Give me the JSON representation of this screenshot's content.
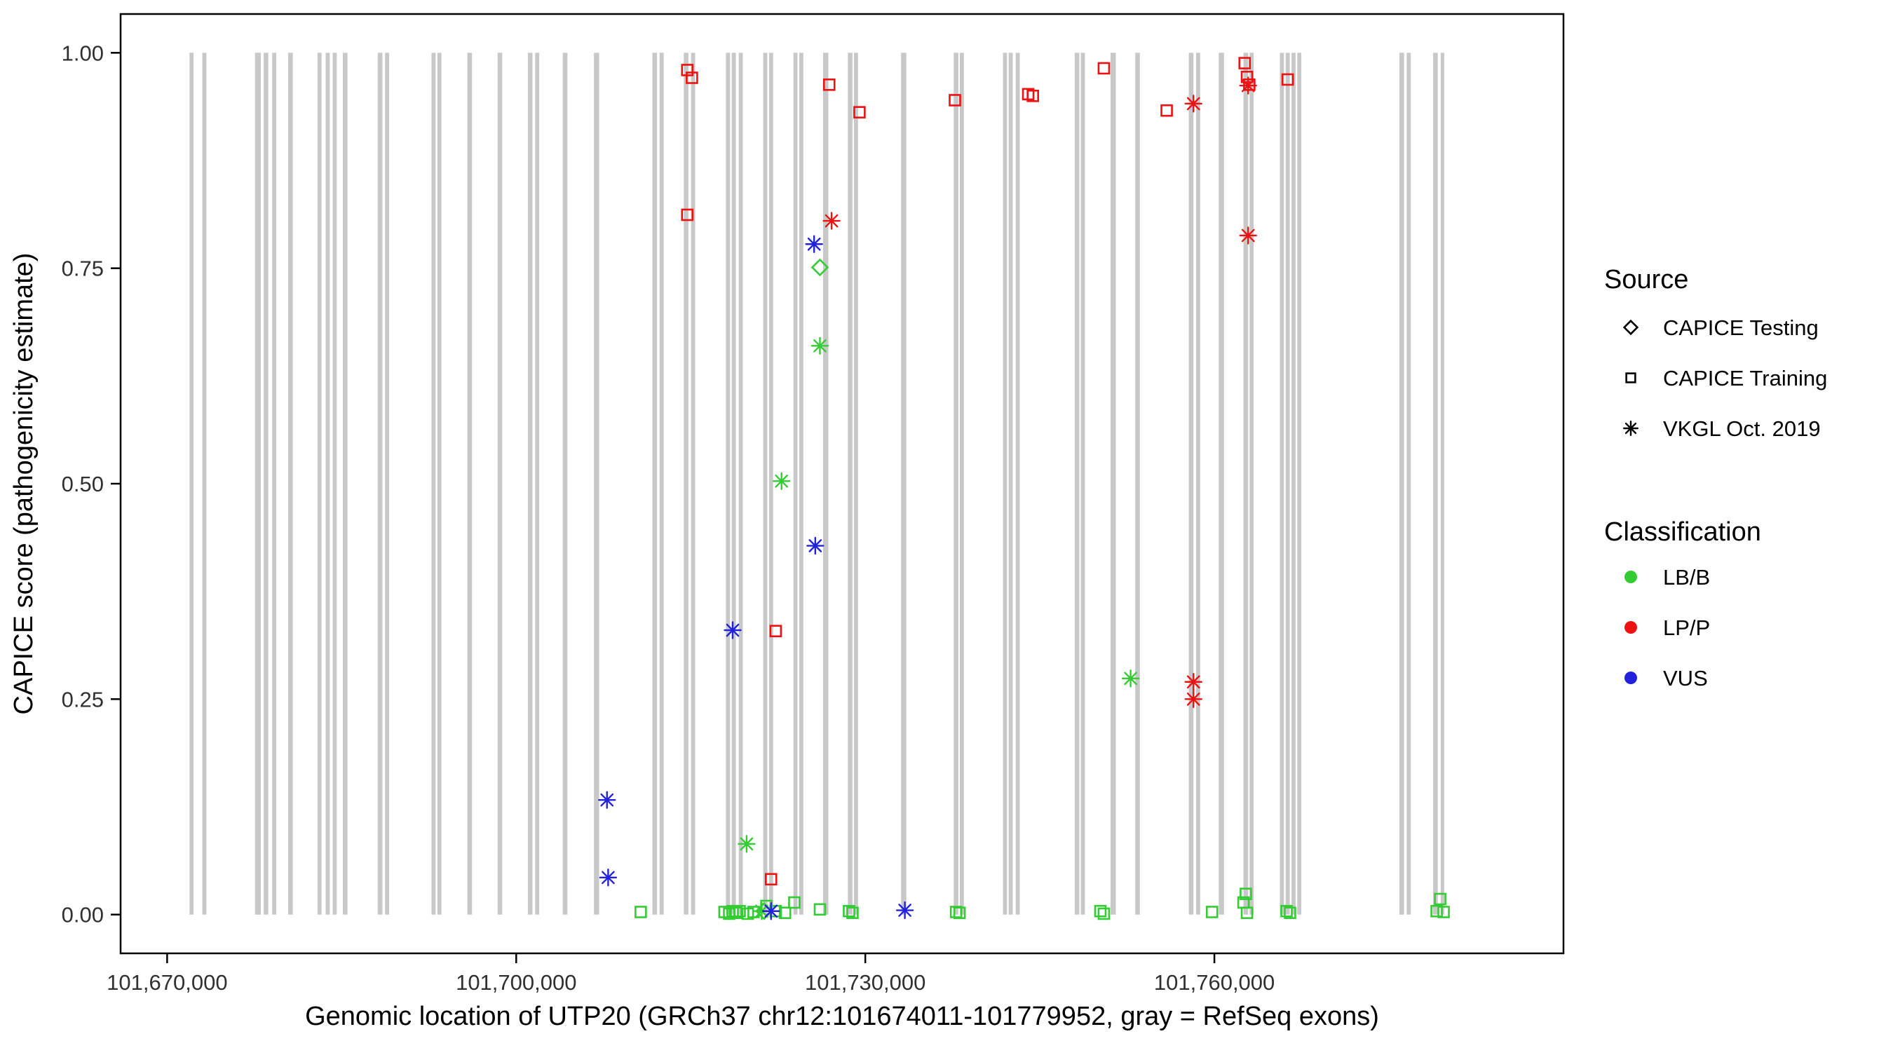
{
  "chart_data": {
    "type": "scatter",
    "title": "",
    "xlabel": "Genomic location of UTP20 (GRCh37 chr12:101674011-101779952, gray = RefSeq exons)",
    "ylabel": "CAPICE score (pathogenicity estimate)",
    "xlim": [
      101666000,
      101790000
    ],
    "ylim": [
      -0.045,
      1.045
    ],
    "grid": false,
    "legend_position": "right",
    "x_ticks": [
      {
        "value": 101670000,
        "label": "101,670,000"
      },
      {
        "value": 101700000,
        "label": "101,700,000"
      },
      {
        "value": 101730000,
        "label": "101,730,000"
      },
      {
        "value": 101760000,
        "label": "101,760,000"
      }
    ],
    "y_ticks": [
      {
        "value": 0.0,
        "label": "0.00"
      },
      {
        "value": 0.25,
        "label": "0.25"
      },
      {
        "value": 0.5,
        "label": "0.50"
      },
      {
        "value": 0.75,
        "label": "0.75"
      },
      {
        "value": 1.0,
        "label": "1.00"
      }
    ],
    "colors": {
      "exon": "#C8C8C8",
      "lbb": "#33CC33",
      "lpp": "#EE1111",
      "vus": "#2222DD"
    },
    "exons": [
      [
        101672100,
        350
      ],
      [
        101673200,
        350
      ],
      [
        101677800,
        500
      ],
      [
        101678500,
        400
      ],
      [
        101679200,
        350
      ],
      [
        101680600,
        400
      ],
      [
        101683100,
        350
      ],
      [
        101683800,
        350
      ],
      [
        101684400,
        350
      ],
      [
        101685300,
        400
      ],
      [
        101688300,
        400
      ],
      [
        101688900,
        350
      ],
      [
        101692900,
        350
      ],
      [
        101693400,
        350
      ],
      [
        101696000,
        400
      ],
      [
        101698600,
        400
      ],
      [
        101701200,
        400
      ],
      [
        101701800,
        350
      ],
      [
        101704200,
        400
      ],
      [
        101706900,
        450
      ],
      [
        101711900,
        400
      ],
      [
        101712500,
        350
      ],
      [
        101714600,
        400
      ],
      [
        101715200,
        350
      ],
      [
        101718200,
        350
      ],
      [
        101718700,
        350
      ],
      [
        101719300,
        350
      ],
      [
        101721400,
        350
      ],
      [
        101721900,
        350
      ],
      [
        101724000,
        350
      ],
      [
        101724500,
        350
      ],
      [
        101726600,
        450
      ],
      [
        101728700,
        400
      ],
      [
        101729200,
        350
      ],
      [
        101733300,
        450
      ],
      [
        101737800,
        400
      ],
      [
        101738300,
        350
      ],
      [
        101742000,
        350
      ],
      [
        101742500,
        350
      ],
      [
        101743100,
        350
      ],
      [
        101748200,
        400
      ],
      [
        101748700,
        350
      ],
      [
        101751300,
        450
      ],
      [
        101753400,
        400
      ],
      [
        101758000,
        400
      ],
      [
        101758600,
        350
      ],
      [
        101760600,
        450
      ],
      [
        101762700,
        400
      ],
      [
        101763200,
        350
      ],
      [
        101765800,
        350
      ],
      [
        101766300,
        350
      ],
      [
        101766800,
        350
      ],
      [
        101767300,
        350
      ],
      [
        101776100,
        400
      ],
      [
        101776700,
        350
      ],
      [
        101779000,
        400
      ],
      [
        101779600,
        300
      ]
    ],
    "series": [
      {
        "name": "CAPICE Training / LP-P",
        "source": "CAPICE Training",
        "classification": "LP/P",
        "shape": "square",
        "color": "#EE1111",
        "points": [
          [
            101714700,
            0.98
          ],
          [
            101715100,
            0.971
          ],
          [
            101714700,
            0.812
          ],
          [
            101722300,
            0.329
          ],
          [
            101721900,
            0.041
          ],
          [
            101726900,
            0.963
          ],
          [
            101729500,
            0.931
          ],
          [
            101737700,
            0.945
          ],
          [
            101744000,
            0.952
          ],
          [
            101744400,
            0.95
          ],
          [
            101750500,
            0.982
          ],
          [
            101755900,
            0.933
          ],
          [
            101762600,
            0.988
          ],
          [
            101762800,
            0.972
          ],
          [
            101763000,
            0.963
          ],
          [
            101766300,
            0.969
          ]
        ]
      },
      {
        "name": "CAPICE Training / LB-B",
        "source": "CAPICE Training",
        "classification": "LB/B",
        "shape": "square",
        "color": "#33CC33",
        "points": [
          [
            101710700,
            0.003
          ],
          [
            101717900,
            0.003
          ],
          [
            101718300,
            0.001
          ],
          [
            101718600,
            0.004
          ],
          [
            101718900,
            0.002
          ],
          [
            101719200,
            0.004
          ],
          [
            101719900,
            0.001
          ],
          [
            101720400,
            0.003
          ],
          [
            101721500,
            0.01
          ],
          [
            101722300,
            0.004
          ],
          [
            101723100,
            0.002
          ],
          [
            101723900,
            0.014
          ],
          [
            101726100,
            0.006
          ],
          [
            101728600,
            0.004
          ],
          [
            101728900,
            0.002
          ],
          [
            101737800,
            0.003
          ],
          [
            101738100,
            0.002
          ],
          [
            101750200,
            0.004
          ],
          [
            101750500,
            0.001
          ],
          [
            101759800,
            0.003
          ],
          [
            101762500,
            0.014
          ],
          [
            101762700,
            0.024
          ],
          [
            101762800,
            0.002
          ],
          [
            101766200,
            0.004
          ],
          [
            101766500,
            0.002
          ],
          [
            101779100,
            0.004
          ],
          [
            101779400,
            0.018
          ],
          [
            101779700,
            0.003
          ]
        ]
      },
      {
        "name": "CAPICE Testing / LB-B",
        "source": "CAPICE Testing",
        "classification": "LB/B",
        "shape": "diamond",
        "color": "#33CC33",
        "points": [
          [
            101726100,
            0.751
          ],
          [
            101721300,
            0.004
          ]
        ]
      },
      {
        "name": "VKGL Oct. 2019 / LP-P",
        "source": "VKGL Oct. 2019",
        "classification": "LP/P",
        "shape": "asterisk",
        "color": "#EE1111",
        "points": [
          [
            101727100,
            0.805
          ],
          [
            101758200,
            0.941
          ],
          [
            101762900,
            0.962
          ],
          [
            101762900,
            0.788
          ],
          [
            101758200,
            0.27
          ],
          [
            101758200,
            0.25
          ]
        ]
      },
      {
        "name": "VKGL Oct. 2019 / LB-B",
        "source": "VKGL Oct. 2019",
        "classification": "LB/B",
        "shape": "asterisk",
        "color": "#33CC33",
        "points": [
          [
            101726100,
            0.66
          ],
          [
            101722800,
            0.503
          ],
          [
            101719800,
            0.082
          ],
          [
            101752800,
            0.274
          ],
          [
            101721100,
            0.004
          ]
        ]
      },
      {
        "name": "VKGL Oct. 2019 / VUS",
        "source": "VKGL Oct. 2019",
        "classification": "VUS",
        "shape": "asterisk",
        "color": "#2222DD",
        "points": [
          [
            101725600,
            0.778
          ],
          [
            101725700,
            0.428
          ],
          [
            101718600,
            0.33
          ],
          [
            101707800,
            0.133
          ],
          [
            101707900,
            0.043
          ],
          [
            101721900,
            0.004
          ],
          [
            101733400,
            0.005
          ]
        ]
      }
    ]
  },
  "legend": {
    "source": {
      "title": "Source",
      "items": [
        {
          "label": "CAPICE Testing",
          "shape": "diamond"
        },
        {
          "label": "CAPICE Training",
          "shape": "square"
        },
        {
          "label": "VKGL Oct. 2019",
          "shape": "asterisk"
        }
      ]
    },
    "classification": {
      "title": "Classification",
      "items": [
        {
          "label": "LB/B",
          "shape": "circle",
          "color": "#33CC33"
        },
        {
          "label": "LP/P",
          "shape": "circle",
          "color": "#EE1111"
        },
        {
          "label": "VUS",
          "shape": "circle",
          "color": "#2222DD"
        }
      ]
    }
  }
}
